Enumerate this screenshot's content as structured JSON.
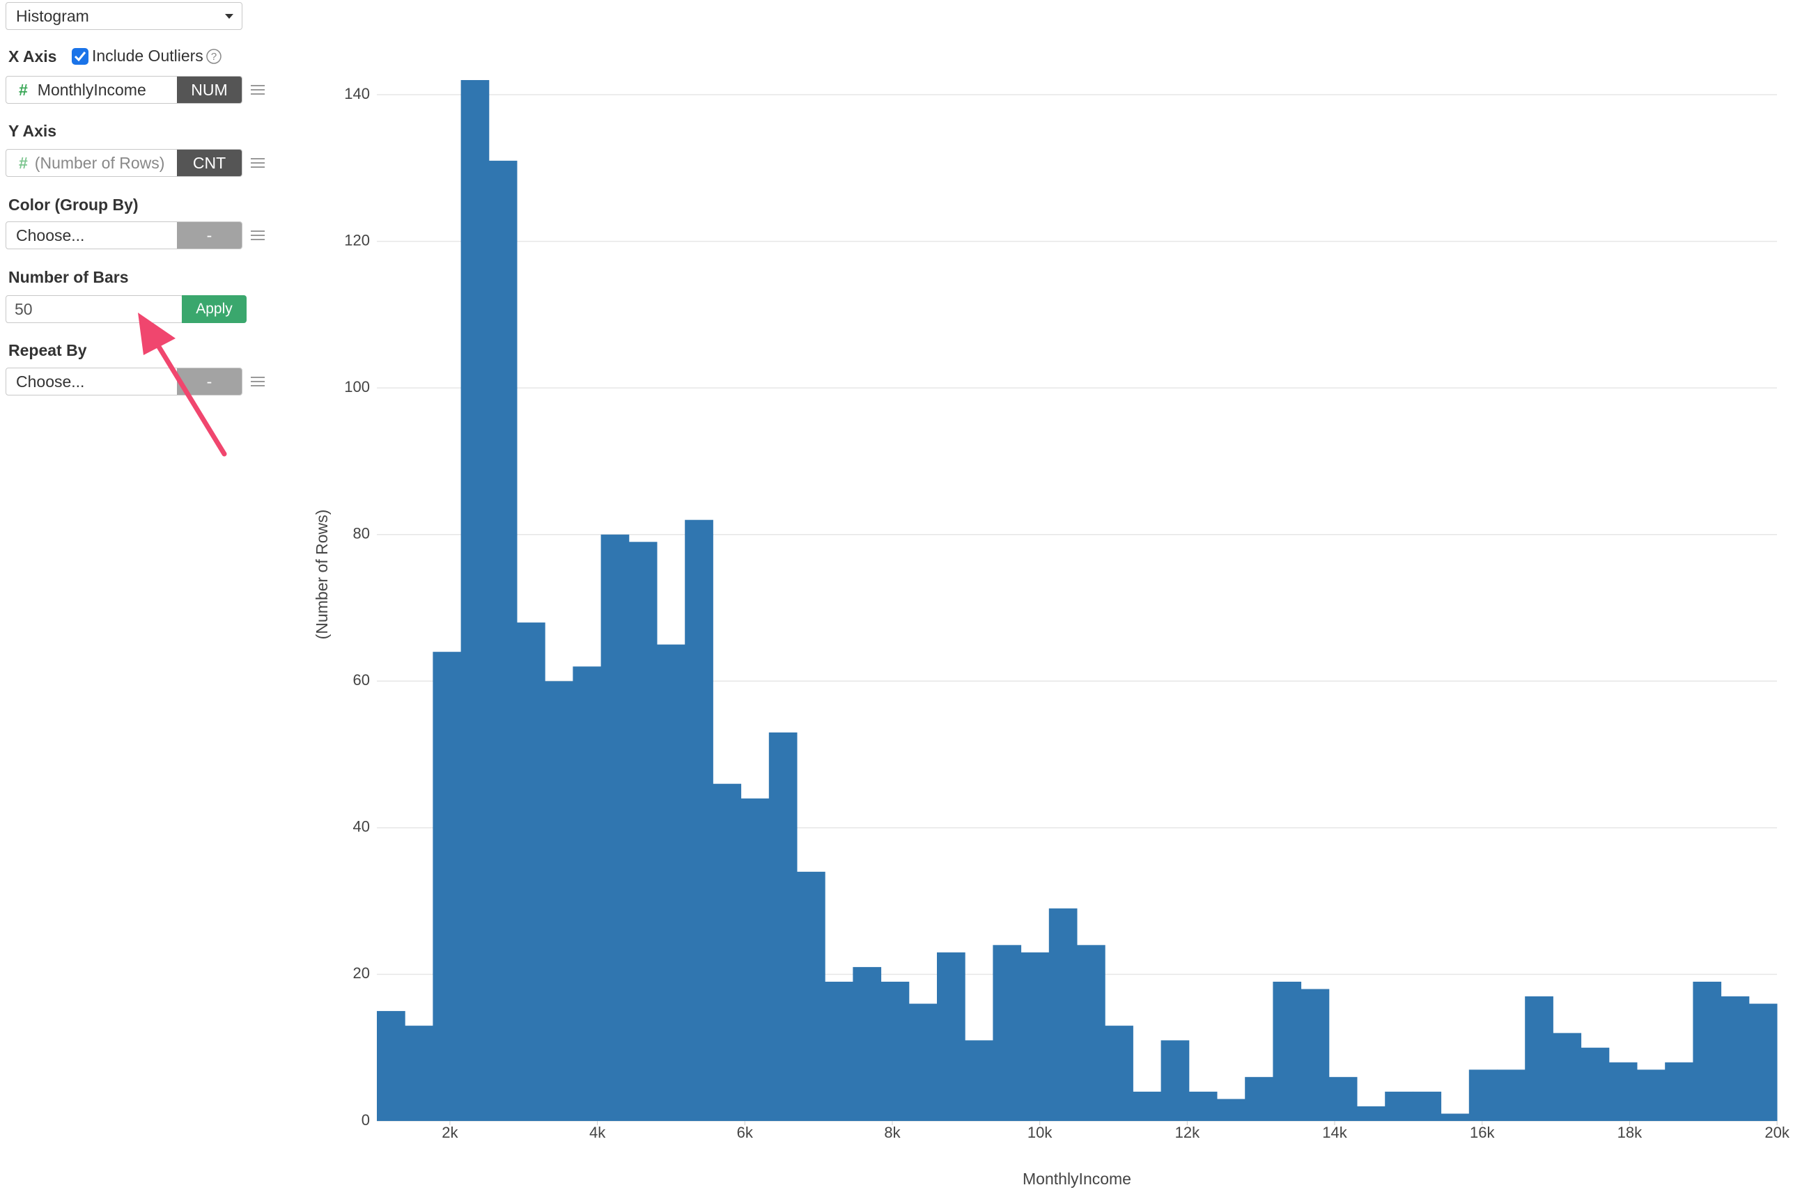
{
  "sidebar": {
    "chart_type": "Histogram",
    "x_axis": {
      "label": "X Axis",
      "option": "Include Outliers",
      "field": "MonthlyIncome",
      "field_type": "NUM"
    },
    "y_axis": {
      "label": "Y Axis",
      "field": "(Number of Rows)",
      "field_type": "CNT"
    },
    "color": {
      "label": "Color (Group By)",
      "field": "Choose...",
      "field_type": "-"
    },
    "bars": {
      "label": "Number of Bars",
      "value": 50,
      "button": "Apply"
    },
    "repeat": {
      "label": "Repeat By",
      "field": "Choose...",
      "field_type": "-"
    }
  },
  "chart_data": {
    "type": "histogram",
    "x_label": "MonthlyIncome",
    "y_label": "(Number of Rows)",
    "color": "#3076b0",
    "bins": [
      1009,
      1388.8,
      1768.6,
      2148.4,
      2528.2,
      2908,
      3287.8,
      3667.6,
      4047.4,
      4427.2,
      4807,
      5186.8,
      5566.6,
      5946.4,
      6326.2,
      6706,
      7085.8,
      7465.6,
      7845.4,
      8225.2,
      8605,
      8984.8,
      9364.6,
      9744.4,
      10124.2,
      10504,
      10883.8,
      11263.6,
      11643.4,
      12023.2,
      12403,
      12782.8,
      13162.6,
      13542.4,
      13922.2,
      14302,
      14681.8,
      15061.6,
      15441.4,
      15821.2,
      16201,
      16580.8,
      16960.6,
      17340.4,
      17720.2,
      18100,
      18479.8,
      18859.6,
      19239.4,
      19619.2,
      19999
    ],
    "values": [
      15,
      13,
      64,
      142,
      131,
      68,
      60,
      62,
      80,
      79,
      65,
      82,
      46,
      44,
      53,
      34,
      19,
      21,
      19,
      16,
      23,
      11,
      24,
      23,
      29,
      24,
      13,
      4,
      11,
      4,
      3,
      6,
      19,
      18,
      6,
      2,
      4,
      4,
      1,
      7,
      7,
      17,
      12,
      10,
      8,
      7,
      8,
      19,
      17,
      16
    ],
    "xlim": [
      1009,
      19999
    ],
    "ylim": [
      0,
      142
    ],
    "xticks": [
      {
        "value": 2000,
        "label": "2k"
      },
      {
        "value": 4000,
        "label": "4k"
      },
      {
        "value": 6000,
        "label": "6k"
      },
      {
        "value": 8000,
        "label": "8k"
      },
      {
        "value": 10000,
        "label": "10k"
      },
      {
        "value": 12000,
        "label": "12k"
      },
      {
        "value": 14000,
        "label": "14k"
      },
      {
        "value": 16000,
        "label": "16k"
      },
      {
        "value": 18000,
        "label": "18k"
      },
      {
        "value": 20000,
        "label": "20k"
      }
    ],
    "yticks": [
      0,
      20,
      40,
      60,
      80,
      100,
      120,
      140
    ],
    "grid": true
  }
}
